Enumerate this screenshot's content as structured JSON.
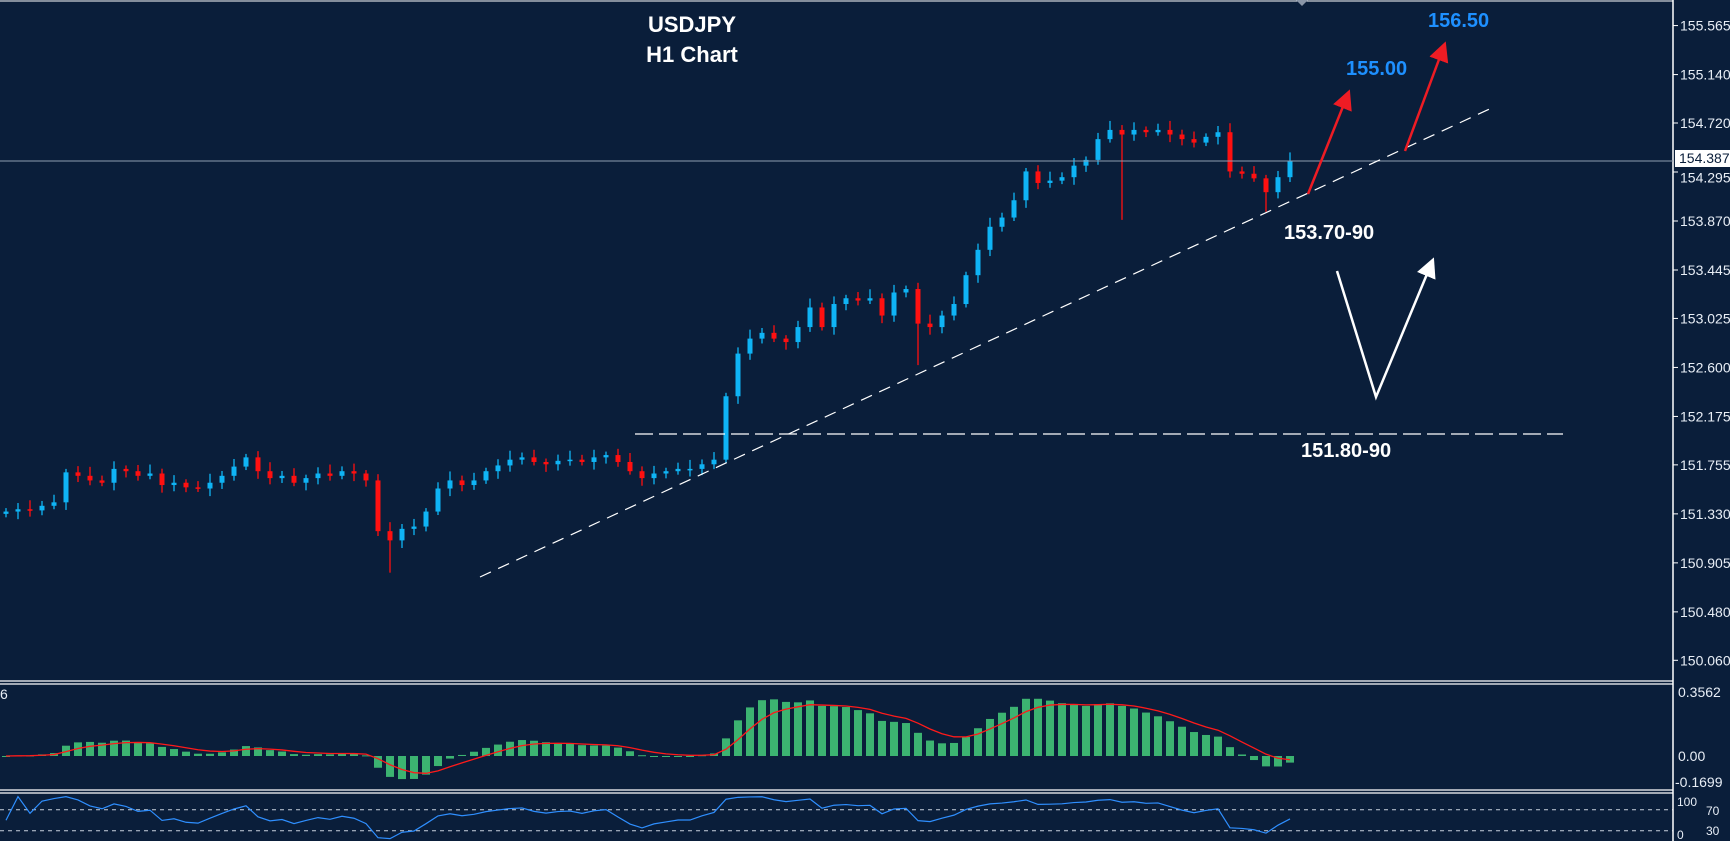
{
  "colors": {
    "background": "#0a1e3a",
    "bull_candle": "#0fb4f5",
    "bear_candle": "#ff1010",
    "macd_histogram": "#3cb371",
    "macd_signal": "#ff1a1a",
    "rsi_line": "#2f8fff",
    "target_text": "#1e90ff",
    "arrow_red": "#ee1c24",
    "annotation_white": "#ffffff"
  },
  "chart_data": {
    "type": "candlestick",
    "title": "USDJPY",
    "subtitle": "H1 Chart",
    "symbol": "USDJPY",
    "timeframe": "H1",
    "y_ticks": [
      "155.565",
      "155.140",
      "154.720",
      "154.295",
      "153.870",
      "153.445",
      "153.025",
      "152.600",
      "152.175",
      "151.755",
      "151.330",
      "150.905",
      "150.480",
      "150.060"
    ],
    "ylim": [
      149.9,
      155.8
    ],
    "current_price": "154.387",
    "close": [
      151.35,
      151.37,
      151.36,
      151.4,
      151.43,
      151.69,
      151.66,
      151.62,
      151.6,
      151.72,
      151.7,
      151.66,
      151.68,
      151.58,
      151.6,
      151.56,
      151.55,
      151.6,
      151.66,
      151.74,
      151.82,
      151.7,
      151.64,
      151.66,
      151.6,
      151.64,
      151.68,
      151.66,
      151.7,
      151.68,
      151.62,
      151.18,
      151.1,
      151.2,
      151.22,
      151.35,
      151.55,
      151.62,
      151.58,
      151.62,
      151.7,
      151.75,
      151.8,
      151.82,
      151.78,
      151.76,
      151.79,
      151.8,
      151.78,
      151.82,
      151.84,
      151.78,
      151.7,
      151.64,
      151.68,
      151.7,
      151.72,
      151.72,
      151.76,
      151.8,
      152.35,
      152.72,
      152.85,
      152.9,
      152.85,
      152.82,
      152.95,
      153.12,
      152.95,
      153.15,
      153.2,
      153.18,
      153.2,
      153.05,
      153.25,
      153.28,
      152.98,
      152.95,
      153.05,
      153.15,
      153.4,
      153.62,
      153.82,
      153.9,
      154.05,
      154.3,
      154.2,
      154.22,
      154.25,
      154.35,
      154.4,
      154.58,
      154.66,
      154.62,
      154.66,
      154.64,
      154.66,
      154.62,
      154.58,
      154.55,
      154.6,
      154.64,
      154.3,
      154.28,
      154.24,
      154.12,
      154.25,
      154.387
    ],
    "notable_lows": {
      "32": 150.82,
      "76": 152.62,
      "93": 153.88,
      "105": 153.95
    },
    "support_levels": [
      {
        "label": "151.80-90",
        "price": 151.85
      },
      {
        "label": "153.70-90",
        "price": 153.8
      }
    ],
    "targets": [
      {
        "label": "155.00",
        "price": 155.0
      },
      {
        "label": "156.50",
        "price": 156.5
      }
    ],
    "macd": {
      "ticks": [
        "0.3562",
        "0.00",
        "-0.1699"
      ],
      "ylim": [
        -0.1699,
        0.3562
      ],
      "label_fragment": "6"
    },
    "rsi": {
      "ticks": [
        "100",
        "70",
        "30",
        "0"
      ],
      "levels": [
        70,
        30
      ]
    }
  }
}
